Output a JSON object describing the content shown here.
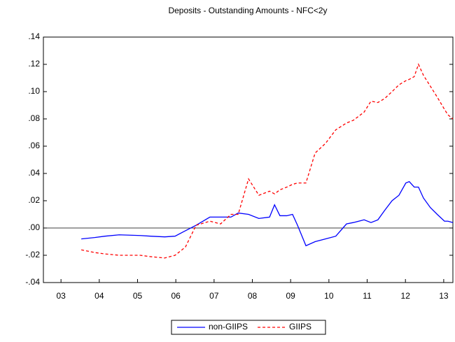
{
  "chart_data": {
    "type": "line",
    "title": "Deposits - Outstanding Amounts - NFC<2y",
    "x": [
      2004.03,
      2004.38,
      2004.65,
      2005.02,
      2005.57,
      2005.84,
      2006.21,
      2006.48,
      2006.75,
      2007.03,
      2007.39,
      2007.67,
      2007.94,
      2008.13,
      2008.4,
      2008.67,
      2008.95,
      2009.08,
      2009.22,
      2009.4,
      2009.55,
      2009.68,
      2009.9,
      2010.14,
      2010.41,
      2010.68,
      2010.96,
      2011.14,
      2011.42,
      2011.6,
      2011.78,
      2011.96,
      2012.15,
      2012.33,
      2012.51,
      2012.6,
      2012.73,
      2012.84,
      2012.97,
      2013.15,
      2013.33,
      2013.52,
      2013.61,
      2013.74
    ],
    "series": [
      {
        "name": "non-GIIPS",
        "color": "#0000ff",
        "dash": false,
        "values": [
          -0.008,
          -0.007,
          -0.006,
          -0.005,
          -0.0055,
          -0.006,
          -0.0065,
          -0.006,
          -0.002,
          0.002,
          0.008,
          0.008,
          0.008,
          0.011,
          0.01,
          0.007,
          0.008,
          0.017,
          0.009,
          0.009,
          0.01,
          0.002,
          -0.013,
          -0.01,
          -0.008,
          -0.006,
          0.003,
          0.004,
          0.006,
          0.004,
          0.006,
          0.013,
          0.02,
          0.024,
          0.033,
          0.034,
          0.03,
          0.03,
          0.022,
          0.015,
          0.01,
          0.005,
          0.005,
          0.004
        ]
      },
      {
        "name": "GIIPS",
        "color": "#ff0000",
        "dash": true,
        "values": [
          -0.016,
          -0.018,
          -0.019,
          -0.02,
          -0.02,
          -0.021,
          -0.022,
          -0.02,
          -0.014,
          0.002,
          0.005,
          0.003,
          0.01,
          0.01,
          0.036,
          0.024,
          0.027,
          0.025,
          0.028,
          0.03,
          0.032,
          0.033,
          0.033,
          0.055,
          0.062,
          0.072,
          0.077,
          0.079,
          0.085,
          0.093,
          0.092,
          0.095,
          0.1,
          0.105,
          0.108,
          0.109,
          0.111,
          0.12,
          0.112,
          0.104,
          0.096,
          0.087,
          0.083,
          0.08
        ]
      }
    ],
    "xlim": [
      2003.04,
      2013.74
    ],
    "xticks": [
      {
        "value": 2003.5,
        "label": "03"
      },
      {
        "value": 2004.5,
        "label": "04"
      },
      {
        "value": 2005.5,
        "label": "05"
      },
      {
        "value": 2006.5,
        "label": "06"
      },
      {
        "value": 2007.5,
        "label": "07"
      },
      {
        "value": 2008.5,
        "label": "08"
      },
      {
        "value": 2009.5,
        "label": "09"
      },
      {
        "value": 2010.5,
        "label": "10"
      },
      {
        "value": 2011.5,
        "label": "11"
      },
      {
        "value": 2012.5,
        "label": "12"
      },
      {
        "value": 2013.5,
        "label": "13"
      }
    ],
    "ylim": [
      -0.04,
      0.14
    ],
    "yticks": [
      {
        "value": -0.04,
        "label": "-.04"
      },
      {
        "value": -0.02,
        "label": "-.02"
      },
      {
        "value": 0,
        "label": ".00"
      },
      {
        "value": 0.02,
        "label": ".02"
      },
      {
        "value": 0.04,
        "label": ".04"
      },
      {
        "value": 0.06,
        "label": ".06"
      },
      {
        "value": 0.08,
        "label": ".08"
      },
      {
        "value": 0.1,
        "label": ".10"
      },
      {
        "value": 0.12,
        "label": ".12"
      },
      {
        "value": 0.14,
        "label": ".14"
      }
    ],
    "grid": false,
    "legend": "bottom"
  }
}
